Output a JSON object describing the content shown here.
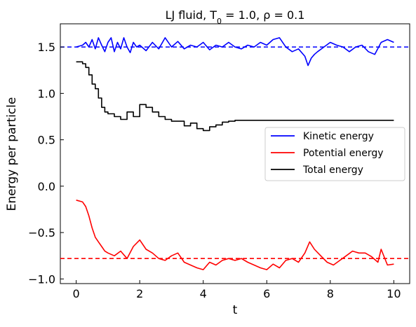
{
  "chart_data": {
    "type": "line",
    "title": "LJ fluid, T₀ = 1.0, ρ = 0.1",
    "xlabel": "t",
    "ylabel": "Energy per particle",
    "xlim": [
      -0.5,
      10.5
    ],
    "ylim": [
      -1.05,
      1.75
    ],
    "xticks": [
      0,
      2,
      4,
      6,
      8,
      10
    ],
    "xtick_labels": [
      "0",
      "2",
      "4",
      "6",
      "8",
      "10"
    ],
    "yticks": [
      -1.0,
      -0.5,
      0.0,
      0.5,
      1.0,
      1.5
    ],
    "ytick_labels": [
      "−1.0",
      "−0.5",
      "0.0",
      "0.5",
      "1.0",
      "1.5"
    ],
    "grid": false,
    "legend_position": "center-right",
    "series": [
      {
        "name": "Kinetic energy",
        "color": "#0000ff",
        "x": [
          0,
          0.2,
          0.3,
          0.4,
          0.5,
          0.6,
          0.7,
          0.8,
          0.9,
          1.0,
          1.1,
          1.2,
          1.3,
          1.4,
          1.5,
          1.6,
          1.7,
          1.8,
          1.9,
          2.0,
          2.2,
          2.4,
          2.6,
          2.8,
          3.0,
          3.2,
          3.4,
          3.6,
          3.8,
          4.0,
          4.2,
          4.4,
          4.6,
          4.8,
          5.0,
          5.2,
          5.4,
          5.6,
          5.8,
          6.0,
          6.2,
          6.4,
          6.6,
          6.8,
          7.0,
          7.2,
          7.3,
          7.4,
          7.5,
          7.6,
          7.8,
          8.0,
          8.2,
          8.4,
          8.6,
          8.8,
          9.0,
          9.2,
          9.4,
          9.6,
          9.8,
          10.0
        ],
        "y": [
          1.5,
          1.52,
          1.55,
          1.5,
          1.58,
          1.48,
          1.6,
          1.52,
          1.45,
          1.55,
          1.6,
          1.45,
          1.55,
          1.48,
          1.6,
          1.5,
          1.44,
          1.55,
          1.5,
          1.52,
          1.46,
          1.55,
          1.48,
          1.6,
          1.5,
          1.56,
          1.48,
          1.52,
          1.5,
          1.55,
          1.47,
          1.52,
          1.5,
          1.55,
          1.5,
          1.48,
          1.52,
          1.5,
          1.55,
          1.52,
          1.58,
          1.6,
          1.5,
          1.45,
          1.48,
          1.4,
          1.3,
          1.38,
          1.42,
          1.45,
          1.5,
          1.55,
          1.52,
          1.5,
          1.45,
          1.5,
          1.52,
          1.45,
          1.42,
          1.55,
          1.58,
          1.55
        ]
      },
      {
        "name": "Potential energy",
        "color": "#ff0000",
        "x": [
          0,
          0.2,
          0.3,
          0.4,
          0.5,
          0.6,
          0.7,
          0.8,
          0.9,
          1.0,
          1.2,
          1.4,
          1.6,
          1.8,
          2.0,
          2.2,
          2.4,
          2.6,
          2.8,
          3.0,
          3.2,
          3.4,
          3.6,
          3.8,
          4.0,
          4.2,
          4.4,
          4.6,
          4.8,
          5.0,
          5.2,
          5.4,
          5.6,
          5.8,
          6.0,
          6.2,
          6.4,
          6.6,
          6.8,
          7.0,
          7.2,
          7.35,
          7.5,
          7.7,
          7.9,
          8.1,
          8.3,
          8.5,
          8.7,
          8.9,
          9.1,
          9.3,
          9.5,
          9.6,
          9.8,
          10.0
        ],
        "y": [
          -0.15,
          -0.17,
          -0.22,
          -0.32,
          -0.45,
          -0.55,
          -0.6,
          -0.65,
          -0.7,
          -0.72,
          -0.75,
          -0.7,
          -0.78,
          -0.65,
          -0.58,
          -0.68,
          -0.72,
          -0.78,
          -0.8,
          -0.75,
          -0.72,
          -0.82,
          -0.85,
          -0.88,
          -0.9,
          -0.82,
          -0.85,
          -0.8,
          -0.78,
          -0.8,
          -0.78,
          -0.82,
          -0.85,
          -0.88,
          -0.9,
          -0.84,
          -0.88,
          -0.8,
          -0.78,
          -0.82,
          -0.72,
          -0.6,
          -0.68,
          -0.75,
          -0.82,
          -0.85,
          -0.8,
          -0.75,
          -0.7,
          -0.72,
          -0.72,
          -0.76,
          -0.82,
          -0.68,
          -0.85,
          -0.84
        ]
      },
      {
        "name": "Total energy",
        "color": "#000000",
        "x": [
          0,
          0.2,
          0.3,
          0.4,
          0.5,
          0.6,
          0.7,
          0.8,
          0.9,
          1.0,
          1.2,
          1.4,
          1.6,
          1.8,
          2.0,
          2.2,
          2.4,
          2.6,
          2.8,
          3.0,
          3.2,
          3.4,
          3.6,
          3.8,
          4.0,
          4.2,
          4.4,
          4.6,
          4.8,
          5.0,
          6.0,
          7.0,
          8.0,
          9.0,
          10.0
        ],
        "y": [
          1.34,
          1.32,
          1.28,
          1.2,
          1.1,
          1.05,
          0.95,
          0.85,
          0.8,
          0.78,
          0.75,
          0.72,
          0.8,
          0.75,
          0.88,
          0.85,
          0.8,
          0.75,
          0.72,
          0.7,
          0.7,
          0.65,
          0.68,
          0.62,
          0.6,
          0.64,
          0.66,
          0.69,
          0.7,
          0.71,
          0.71,
          0.71,
          0.71,
          0.71,
          0.71
        ],
        "step": true
      }
    ],
    "reference_lines": [
      {
        "y": 1.5,
        "color": "#0000ff",
        "style": "dashed"
      },
      {
        "y": -0.78,
        "color": "#ff0000",
        "style": "dashed"
      }
    ]
  }
}
